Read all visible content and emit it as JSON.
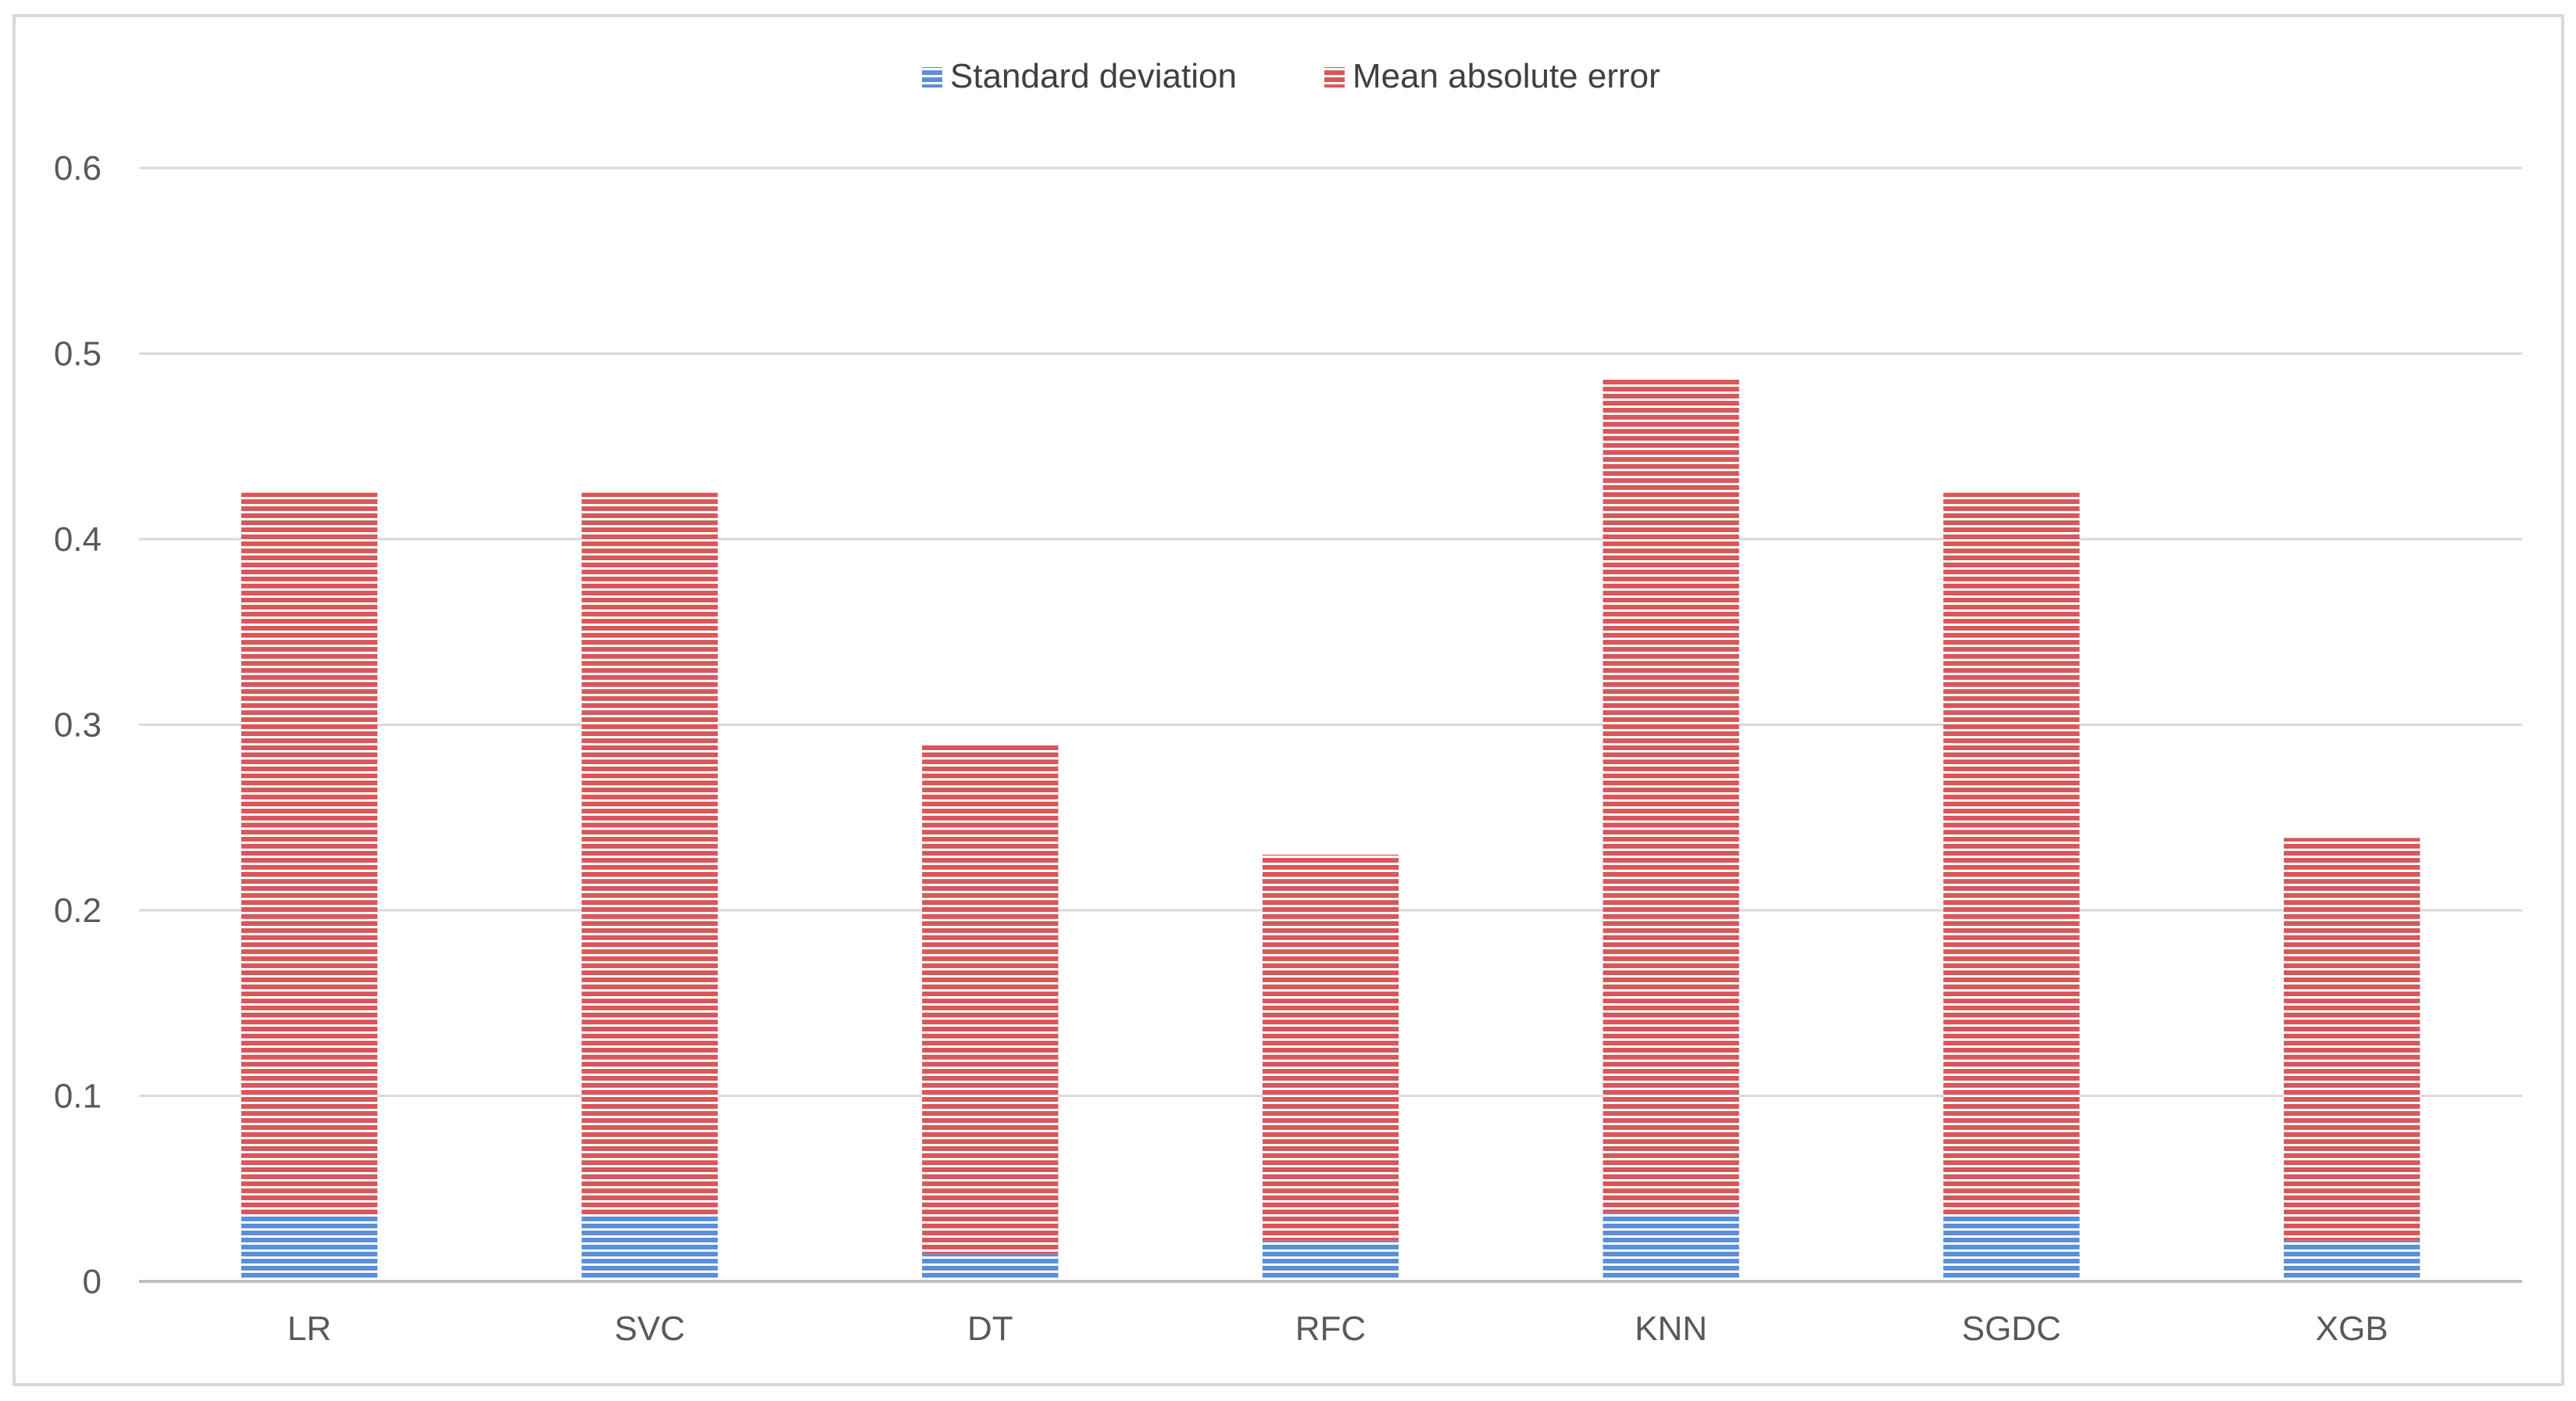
{
  "chart_data": {
    "type": "bar",
    "stacked": true,
    "categories": [
      "LR",
      "SVC",
      "DT",
      "RFC",
      "KNN",
      "SGDC",
      "XGB"
    ],
    "series": [
      {
        "name": "Standard deviation",
        "values": [
          0.035,
          0.035,
          0.015,
          0.022,
          0.037,
          0.035,
          0.022
        ],
        "color": "#5b8fd6"
      },
      {
        "name": "Mean absolute error",
        "values": [
          0.39,
          0.39,
          0.275,
          0.208,
          0.45,
          0.39,
          0.217
        ],
        "color": "#d9575a"
      }
    ],
    "y_ticks": [
      "0",
      "0.1",
      "0.2",
      "0.3",
      "0.4",
      "0.5",
      "0.6"
    ],
    "ylim": [
      0,
      0.6
    ],
    "grid": true,
    "legend_position": "top-center",
    "title": "",
    "xlabel": "",
    "ylabel": ""
  },
  "colors": {
    "gridline": "#d9d9d9",
    "axis": "#bfbfbf",
    "frame_border": "#d9d9d9",
    "stripe": "#ffffff"
  }
}
